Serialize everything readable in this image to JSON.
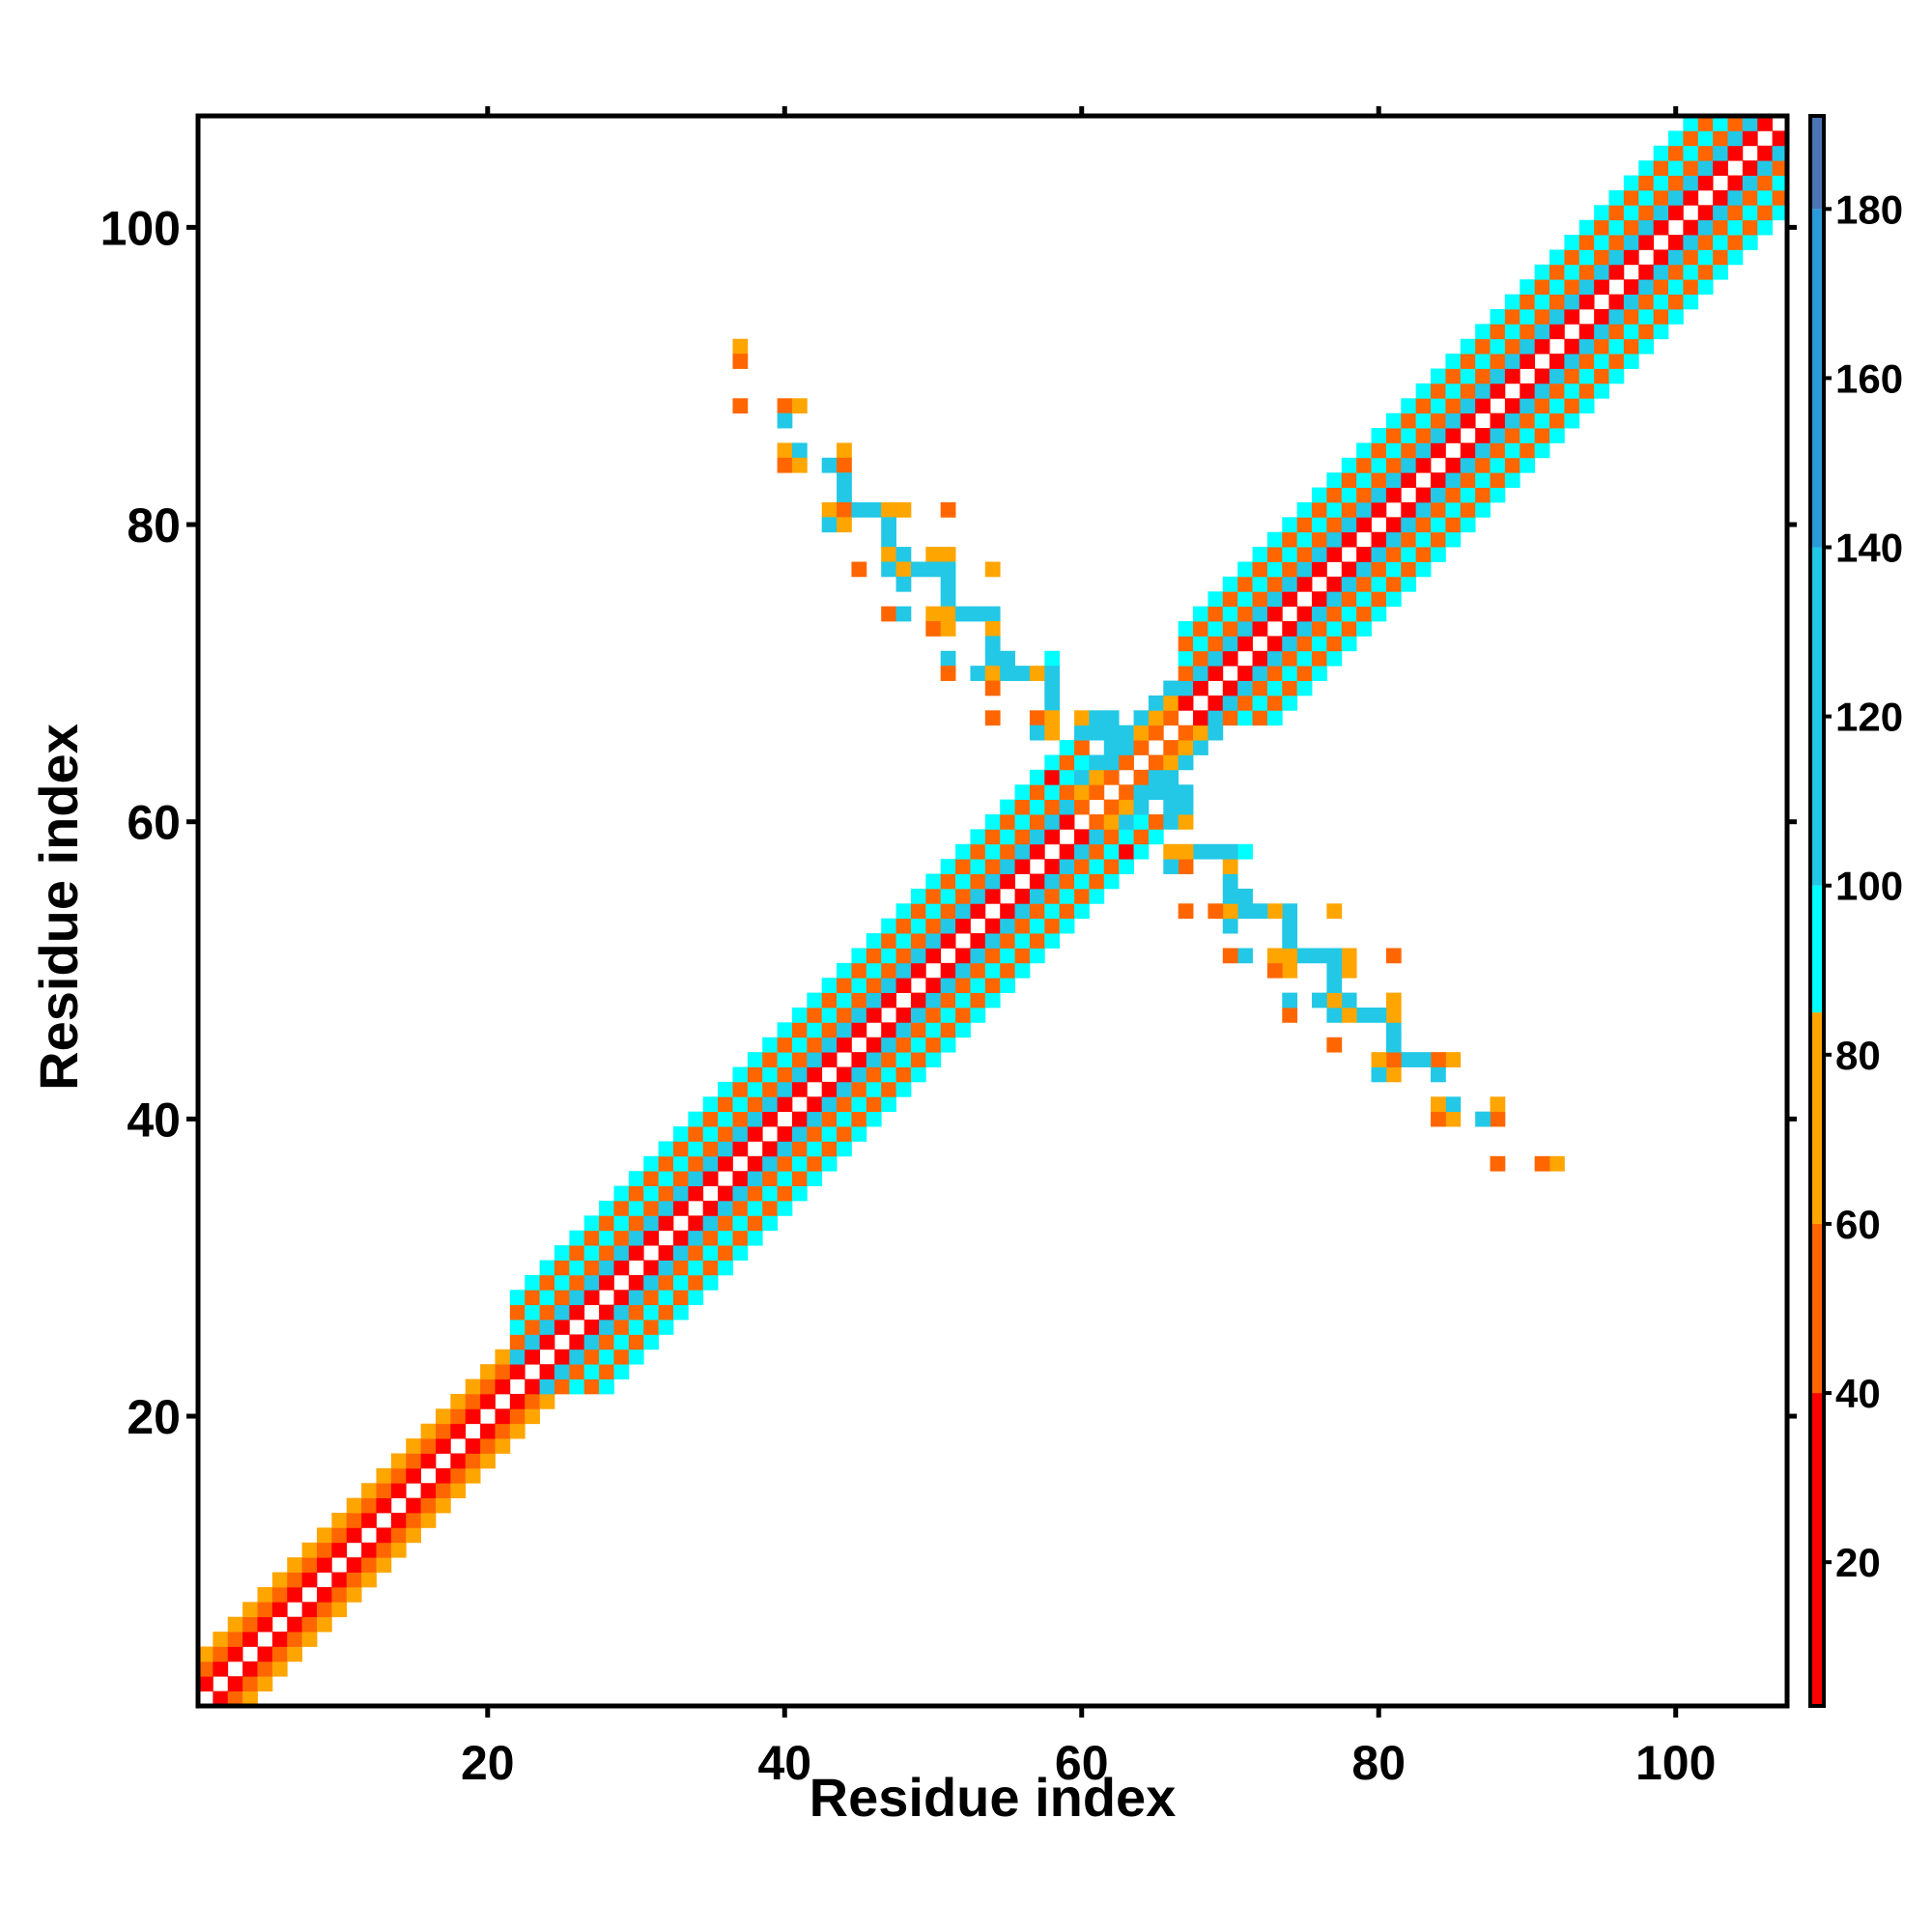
{
  "chart_data": {
    "type": "heatmap",
    "title": "",
    "xlabel": "Residue index",
    "ylabel": "Residue index",
    "xlim": [
      0.5,
      107.5
    ],
    "ylim": [
      0.5,
      107.5
    ],
    "xticks": [
      20,
      40,
      60,
      80,
      100
    ],
    "yticks": [
      20,
      40,
      60,
      80,
      100
    ],
    "grid": false,
    "colorbar": {
      "range": [
        3,
        191
      ],
      "ticks": [
        20,
        40,
        60,
        80,
        100,
        120,
        140,
        160,
        180
      ],
      "bands": [
        {
          "from": 3,
          "to": 40,
          "color": "#ff0000"
        },
        {
          "from": 40,
          "to": 60,
          "color": "#ff6600"
        },
        {
          "from": 60,
          "to": 85,
          "color": "#ffa500"
        },
        {
          "from": 85,
          "to": 100,
          "color": "#00ffff"
        },
        {
          "from": 100,
          "to": 140,
          "color": "#22c8e6"
        },
        {
          "from": 140,
          "to": 180,
          "color": "#2a9ad8"
        },
        {
          "from": 180,
          "to": 191,
          "color": "#4a74b4"
        }
      ]
    },
    "diagonal_band": [
      {
        "from_residue": 1,
        "to_residue": 21,
        "offsets": [
          1,
          2,
          3
        ],
        "values": [
          32,
          55,
          72
        ]
      },
      {
        "from_residue": 22,
        "to_residue": 60,
        "offsets": [
          1,
          2,
          3,
          4,
          5,
          6
        ],
        "values": [
          36,
          112,
          55,
          92,
          48,
          95
        ]
      },
      {
        "from_residue": 60,
        "to_residue": 67,
        "offsets": [
          1,
          2,
          3
        ],
        "values": [
          55,
          72,
          125
        ]
      },
      {
        "from_residue": 67,
        "to_residue": 107,
        "offsets": [
          1,
          2,
          3,
          4,
          5,
          6
        ],
        "values": [
          36,
          112,
          55,
          92,
          48,
          95
        ]
      }
    ],
    "cells": [
      {
        "x": 37,
        "y": 92,
        "value": 72
      },
      {
        "x": 37,
        "y": 91,
        "value": 55
      },
      {
        "x": 37,
        "y": 88,
        "value": 55
      },
      {
        "x": 40,
        "y": 88,
        "value": 55
      },
      {
        "x": 41,
        "y": 88,
        "value": 72
      },
      {
        "x": 40,
        "y": 87,
        "value": 120
      },
      {
        "x": 40,
        "y": 85,
        "value": 72
      },
      {
        "x": 41,
        "y": 85,
        "value": 120
      },
      {
        "x": 40,
        "y": 84,
        "value": 55
      },
      {
        "x": 41,
        "y": 84,
        "value": 72
      },
      {
        "x": 43,
        "y": 84,
        "value": 120
      },
      {
        "x": 44,
        "y": 85,
        "value": 72
      },
      {
        "x": 44,
        "y": 84,
        "value": 55
      },
      {
        "x": 44,
        "y": 83,
        "value": 120
      },
      {
        "x": 44,
        "y": 82,
        "value": 120
      },
      {
        "x": 43,
        "y": 81,
        "value": 72
      },
      {
        "x": 44,
        "y": 81,
        "value": 55
      },
      {
        "x": 45,
        "y": 81,
        "value": 120
      },
      {
        "x": 46,
        "y": 81,
        "value": 120
      },
      {
        "x": 47,
        "y": 81,
        "value": 72
      },
      {
        "x": 48,
        "y": 81,
        "value": 72
      },
      {
        "x": 51,
        "y": 81,
        "value": 55
      },
      {
        "x": 43,
        "y": 80,
        "value": 120
      },
      {
        "x": 44,
        "y": 80,
        "value": 72
      },
      {
        "x": 47,
        "y": 80,
        "value": 120
      },
      {
        "x": 47,
        "y": 79,
        "value": 120
      },
      {
        "x": 47,
        "y": 78,
        "value": 72
      },
      {
        "x": 48,
        "y": 78,
        "value": 120
      },
      {
        "x": 50,
        "y": 78,
        "value": 72
      },
      {
        "x": 51,
        "y": 78,
        "value": 72
      },
      {
        "x": 45,
        "y": 77,
        "value": 55
      },
      {
        "x": 47,
        "y": 77,
        "value": 120
      },
      {
        "x": 48,
        "y": 77,
        "value": 72
      },
      {
        "x": 49,
        "y": 77,
        "value": 120
      },
      {
        "x": 50,
        "y": 77,
        "value": 120
      },
      {
        "x": 51,
        "y": 77,
        "value": 120
      },
      {
        "x": 54,
        "y": 77,
        "value": 72
      },
      {
        "x": 48,
        "y": 76,
        "value": 120
      },
      {
        "x": 51,
        "y": 76,
        "value": 120
      },
      {
        "x": 51,
        "y": 75,
        "value": 120
      },
      {
        "x": 47,
        "y": 74,
        "value": 55
      },
      {
        "x": 48,
        "y": 74,
        "value": 120
      },
      {
        "x": 50,
        "y": 74,
        "value": 72
      },
      {
        "x": 51,
        "y": 74,
        "value": 72
      },
      {
        "x": 52,
        "y": 74,
        "value": 120
      },
      {
        "x": 53,
        "y": 74,
        "value": 120
      },
      {
        "x": 54,
        "y": 74,
        "value": 120
      },
      {
        "x": 50,
        "y": 73,
        "value": 55
      },
      {
        "x": 51,
        "y": 73,
        "value": 72
      },
      {
        "x": 54,
        "y": 73,
        "value": 72
      },
      {
        "x": 54,
        "y": 72,
        "value": 120
      },
      {
        "x": 51,
        "y": 71,
        "value": 120
      },
      {
        "x": 54,
        "y": 71,
        "value": 120
      },
      {
        "x": 55,
        "y": 71,
        "value": 120
      },
      {
        "x": 58,
        "y": 71,
        "value": 95
      },
      {
        "x": 51,
        "y": 70,
        "value": 55
      },
      {
        "x": 53,
        "y": 70,
        "value": 120
      },
      {
        "x": 54,
        "y": 70,
        "value": 72
      },
      {
        "x": 55,
        "y": 70,
        "value": 120
      },
      {
        "x": 56,
        "y": 70,
        "value": 120
      },
      {
        "x": 57,
        "y": 70,
        "value": 72
      },
      {
        "x": 58,
        "y": 70,
        "value": 120
      },
      {
        "x": 54,
        "y": 69,
        "value": 55
      },
      {
        "x": 58,
        "y": 69,
        "value": 120
      },
      {
        "x": 58,
        "y": 68,
        "value": 120
      },
      {
        "x": 54,
        "y": 67,
        "value": 55
      },
      {
        "x": 57,
        "y": 67,
        "value": 55
      },
      {
        "x": 58,
        "y": 67,
        "value": 72
      },
      {
        "x": 60,
        "y": 67,
        "value": 72
      },
      {
        "x": 61,
        "y": 67,
        "value": 120
      },
      {
        "x": 62,
        "y": 67,
        "value": 120
      },
      {
        "x": 57,
        "y": 66,
        "value": 120
      },
      {
        "x": 58,
        "y": 66,
        "value": 72
      },
      {
        "x": 60,
        "y": 66,
        "value": 120
      },
      {
        "x": 61,
        "y": 66,
        "value": 120
      },
      {
        "x": 62,
        "y": 66,
        "value": 120
      },
      {
        "x": 63,
        "y": 66,
        "value": 120
      },
      {
        "x": 92,
        "y": 37,
        "value": 72
      },
      {
        "x": 91,
        "y": 37,
        "value": 55
      },
      {
        "x": 88,
        "y": 37,
        "value": 55
      },
      {
        "x": 88,
        "y": 40,
        "value": 55
      },
      {
        "x": 88,
        "y": 41,
        "value": 72
      },
      {
        "x": 87,
        "y": 40,
        "value": 120
      },
      {
        "x": 85,
        "y": 40,
        "value": 72
      },
      {
        "x": 85,
        "y": 41,
        "value": 120
      },
      {
        "x": 84,
        "y": 40,
        "value": 55
      },
      {
        "x": 84,
        "y": 41,
        "value": 72
      },
      {
        "x": 84,
        "y": 43,
        "value": 120
      },
      {
        "x": 85,
        "y": 44,
        "value": 72
      },
      {
        "x": 84,
        "y": 44,
        "value": 55
      },
      {
        "x": 83,
        "y": 44,
        "value": 120
      },
      {
        "x": 82,
        "y": 44,
        "value": 120
      },
      {
        "x": 81,
        "y": 43,
        "value": 72
      },
      {
        "x": 81,
        "y": 44,
        "value": 55
      },
      {
        "x": 81,
        "y": 45,
        "value": 120
      },
      {
        "x": 81,
        "y": 46,
        "value": 120
      },
      {
        "x": 81,
        "y": 47,
        "value": 72
      },
      {
        "x": 81,
        "y": 48,
        "value": 72
      },
      {
        "x": 81,
        "y": 51,
        "value": 55
      },
      {
        "x": 80,
        "y": 43,
        "value": 120
      },
      {
        "x": 80,
        "y": 44,
        "value": 72
      },
      {
        "x": 80,
        "y": 47,
        "value": 120
      },
      {
        "x": 79,
        "y": 47,
        "value": 120
      },
      {
        "x": 78,
        "y": 47,
        "value": 72
      },
      {
        "x": 78,
        "y": 48,
        "value": 120
      },
      {
        "x": 78,
        "y": 50,
        "value": 72
      },
      {
        "x": 78,
        "y": 51,
        "value": 72
      },
      {
        "x": 77,
        "y": 45,
        "value": 55
      },
      {
        "x": 77,
        "y": 47,
        "value": 120
      },
      {
        "x": 77,
        "y": 48,
        "value": 72
      },
      {
        "x": 77,
        "y": 49,
        "value": 120
      },
      {
        "x": 77,
        "y": 50,
        "value": 120
      },
      {
        "x": 77,
        "y": 51,
        "value": 120
      },
      {
        "x": 77,
        "y": 54,
        "value": 72
      },
      {
        "x": 76,
        "y": 48,
        "value": 120
      },
      {
        "x": 76,
        "y": 51,
        "value": 120
      },
      {
        "x": 75,
        "y": 51,
        "value": 120
      },
      {
        "x": 74,
        "y": 47,
        "value": 55
      },
      {
        "x": 74,
        "y": 48,
        "value": 120
      },
      {
        "x": 74,
        "y": 50,
        "value": 72
      },
      {
        "x": 74,
        "y": 51,
        "value": 72
      },
      {
        "x": 74,
        "y": 52,
        "value": 120
      },
      {
        "x": 74,
        "y": 53,
        "value": 120
      },
      {
        "x": 74,
        "y": 54,
        "value": 120
      },
      {
        "x": 73,
        "y": 50,
        "value": 55
      },
      {
        "x": 73,
        "y": 51,
        "value": 72
      },
      {
        "x": 73,
        "y": 54,
        "value": 72
      },
      {
        "x": 72,
        "y": 54,
        "value": 120
      },
      {
        "x": 71,
        "y": 51,
        "value": 120
      },
      {
        "x": 71,
        "y": 54,
        "value": 120
      },
      {
        "x": 71,
        "y": 55,
        "value": 120
      },
      {
        "x": 71,
        "y": 58,
        "value": 95
      },
      {
        "x": 70,
        "y": 51,
        "value": 55
      },
      {
        "x": 70,
        "y": 53,
        "value": 120
      },
      {
        "x": 70,
        "y": 54,
        "value": 72
      },
      {
        "x": 70,
        "y": 55,
        "value": 120
      },
      {
        "x": 70,
        "y": 56,
        "value": 120
      },
      {
        "x": 70,
        "y": 57,
        "value": 72
      },
      {
        "x": 70,
        "y": 58,
        "value": 120
      },
      {
        "x": 69,
        "y": 54,
        "value": 55
      },
      {
        "x": 69,
        "y": 58,
        "value": 120
      },
      {
        "x": 68,
        "y": 58,
        "value": 120
      },
      {
        "x": 67,
        "y": 54,
        "value": 55
      },
      {
        "x": 67,
        "y": 57,
        "value": 55
      },
      {
        "x": 67,
        "y": 58,
        "value": 72
      },
      {
        "x": 67,
        "y": 60,
        "value": 72
      },
      {
        "x": 67,
        "y": 61,
        "value": 120
      },
      {
        "x": 67,
        "y": 62,
        "value": 120
      },
      {
        "x": 66,
        "y": 57,
        "value": 120
      },
      {
        "x": 66,
        "y": 58,
        "value": 72
      },
      {
        "x": 66,
        "y": 60,
        "value": 120
      },
      {
        "x": 66,
        "y": 61,
        "value": 120
      },
      {
        "x": 66,
        "y": 62,
        "value": 120
      },
      {
        "x": 66,
        "y": 63,
        "value": 120
      },
      {
        "x": 63,
        "y": 58,
        "value": 36
      },
      {
        "x": 58,
        "y": 63,
        "value": 36
      },
      {
        "x": 64,
        "y": 62,
        "value": 125
      },
      {
        "x": 62,
        "y": 64,
        "value": 125
      },
      {
        "x": 65,
        "y": 63,
        "value": 125
      },
      {
        "x": 63,
        "y": 65,
        "value": 125
      }
    ]
  }
}
